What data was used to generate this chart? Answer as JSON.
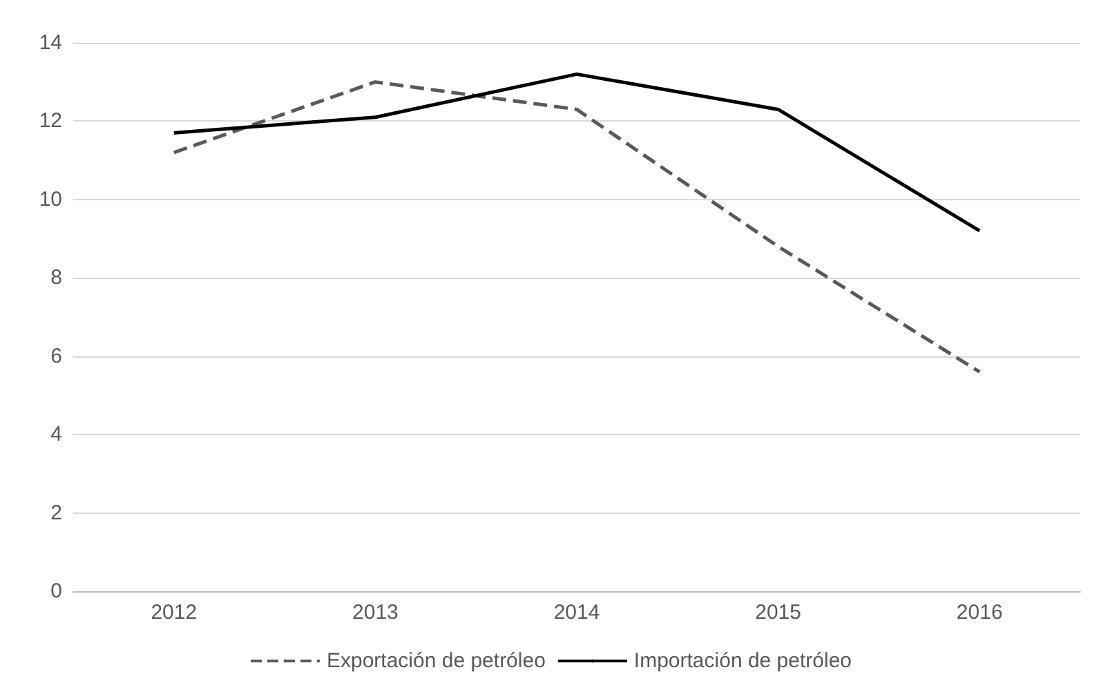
{
  "chart_data": {
    "type": "line",
    "categories": [
      "2012",
      "2013",
      "2014",
      "2015",
      "2016"
    ],
    "series": [
      {
        "name": "Exportación de petróleo",
        "color": "#595959",
        "line_style": "dashed",
        "values": [
          11.2,
          13.0,
          12.3,
          8.8,
          5.6
        ]
      },
      {
        "name": "Importación de petróleo",
        "color": "#000000",
        "line_style": "solid",
        "values": [
          11.7,
          12.1,
          13.2,
          12.3,
          9.2
        ]
      }
    ],
    "ylim": [
      0,
      14
    ],
    "yticks": [
      0,
      2,
      4,
      6,
      8,
      10,
      12,
      14
    ],
    "grid": "y",
    "legend": "bottom",
    "marker": "none"
  }
}
